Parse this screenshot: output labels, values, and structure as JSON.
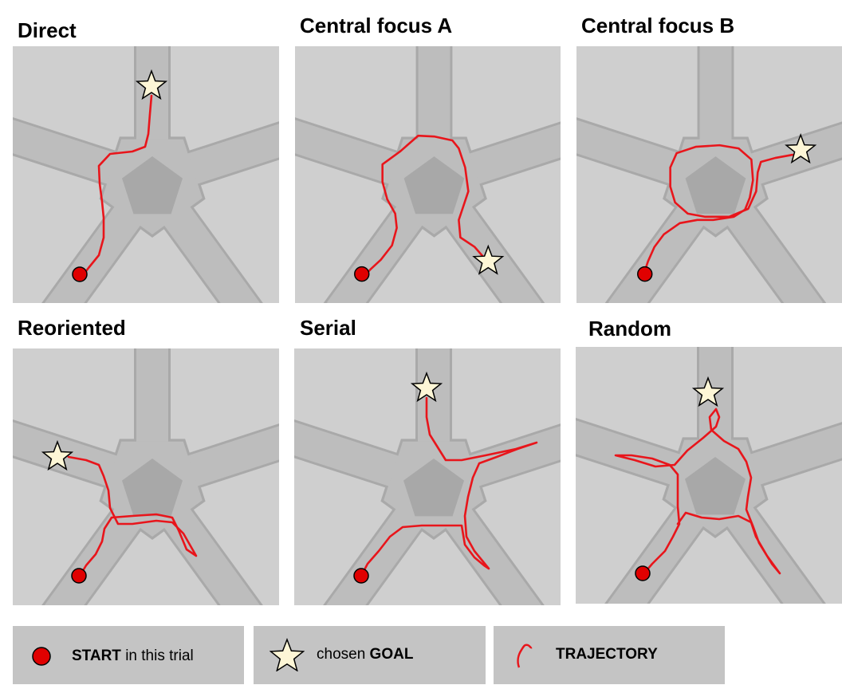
{
  "panels": [
    {
      "title": "Direct"
    },
    {
      "title": "Central focus A"
    },
    {
      "title": "Central focus B"
    },
    {
      "title": "Reoriented"
    },
    {
      "title": "Serial"
    },
    {
      "title": "Random"
    }
  ],
  "legend": {
    "start_bold": "START",
    "start_rest": " in this trial",
    "goal_pre": "chosen ",
    "goal_bold": "GOAL",
    "trajectory_bold": "TRAJECTORY"
  },
  "colors": {
    "trajectory": "#e8151b",
    "start_marker": "#e00000",
    "goal_star": "#fdf6d6",
    "maze_background": "#cfcfcf",
    "arm_fill": "#bdbdbd",
    "center_pentagon": "#a8a8a8",
    "legend_background": "#c4c4c4"
  }
}
